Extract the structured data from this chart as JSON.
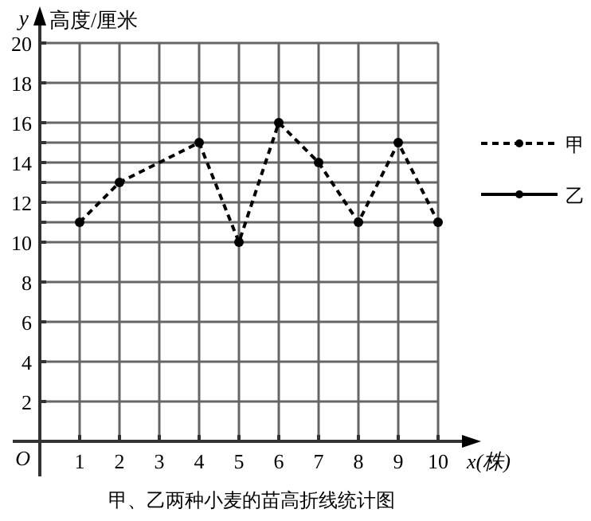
{
  "chart_data": {
    "type": "line",
    "title": "甲、乙两种小麦的苗高折线统计图",
    "xlabel": "x(株)",
    "ylabel": "高度/厘米",
    "annotations": [
      "y",
      "O"
    ],
    "xlim": [
      0,
      10
    ],
    "xticks": [
      1,
      2,
      3,
      4,
      5,
      6,
      7,
      8,
      9,
      10
    ],
    "ylim": [
      0,
      20
    ],
    "yticks": [
      2,
      4,
      6,
      8,
      10,
      {
        "value": 11,
        "label": null
      },
      12,
      {
        "value": 13,
        "label": null
      },
      14,
      {
        "value": 15,
        "label": null
      },
      16,
      18,
      20
    ],
    "grid": true,
    "legend": "right",
    "marker": "circle",
    "series": [
      {
        "name": "甲",
        "color": "#000000",
        "line_style": "dashed",
        "x": [
          1,
          2,
          4,
          5,
          6,
          7,
          8,
          9,
          10
        ],
        "values": [
          11,
          13,
          15,
          10,
          16,
          14,
          11,
          15,
          11
        ]
      },
      {
        "name": "乙",
        "color": "#000000",
        "line_style": "solid"
      }
    ]
  }
}
